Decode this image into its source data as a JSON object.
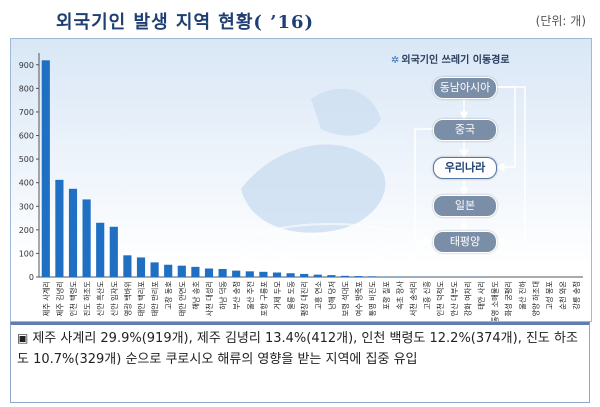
{
  "header": {
    "title": "외국기인 발생 지역 현황( ’16)",
    "unit": "(단위: 개)"
  },
  "flow": {
    "title": "외국기인 쓰레기 이동경로",
    "boxes": [
      "동남아시아",
      "중국",
      "우리나라",
      "일본",
      "태평양"
    ]
  },
  "note": {
    "marker": "▣",
    "text": "제주 사계리 29.9%(919개), 제주 김녕리 13.4%(412개), 인천 백령도 12.2%(374개), 진도 하조도 10.7%(329개) 순으로 쿠로시오 해류의 영향을 받는 지역에 집중 유입"
  },
  "chart_data": {
    "type": "bar",
    "title": "외국기인 발생 지역 현황( ’16)",
    "xlabel": "",
    "ylabel": "",
    "ylim": [
      0,
      950
    ],
    "yticks": [
      0,
      100,
      200,
      300,
      400,
      500,
      600,
      700,
      800,
      900
    ],
    "grid": false,
    "bar_color": "#1f6fc2",
    "categories": [
      "제주 사계리",
      "제주 김녕리",
      "인천 백령도",
      "진도 하조도",
      "신안 흑산도",
      "신안 임자도",
      "영광 백바위",
      "태안 백리포",
      "태안 만리포",
      "고창 동호",
      "태안 안면도",
      "해남 송호",
      "사천 대성리",
      "하남 덕동",
      "부산 송정",
      "울산 주전",
      "포항 구룡포",
      "거제 두모",
      "울릉 도동",
      "평창 대진리",
      "고흥 연소",
      "남해 당저",
      "보령 석대도",
      "여수 방죽포",
      "통영 비진도",
      "포항 칠포",
      "속초 장사",
      "서천 송석리",
      "고흥 신흥",
      "인천 덕적도",
      "안산 대부도",
      "강화 여차리",
      "태안 사리",
      "통영 소매물도",
      "화성 궁평리",
      "울산 진하",
      "양양 하조대",
      "고성 봉포",
      "순천 와온",
      "강릉 송정"
    ],
    "values": [
      919,
      412,
      374,
      329,
      230,
      213,
      92,
      83,
      62,
      52,
      48,
      43,
      36,
      34,
      27,
      24,
      22,
      19,
      16,
      13,
      10,
      8,
      5,
      4,
      3,
      2,
      2,
      1,
      1,
      1,
      1,
      1,
      1,
      0,
      0,
      0,
      0,
      0,
      0,
      0
    ]
  }
}
